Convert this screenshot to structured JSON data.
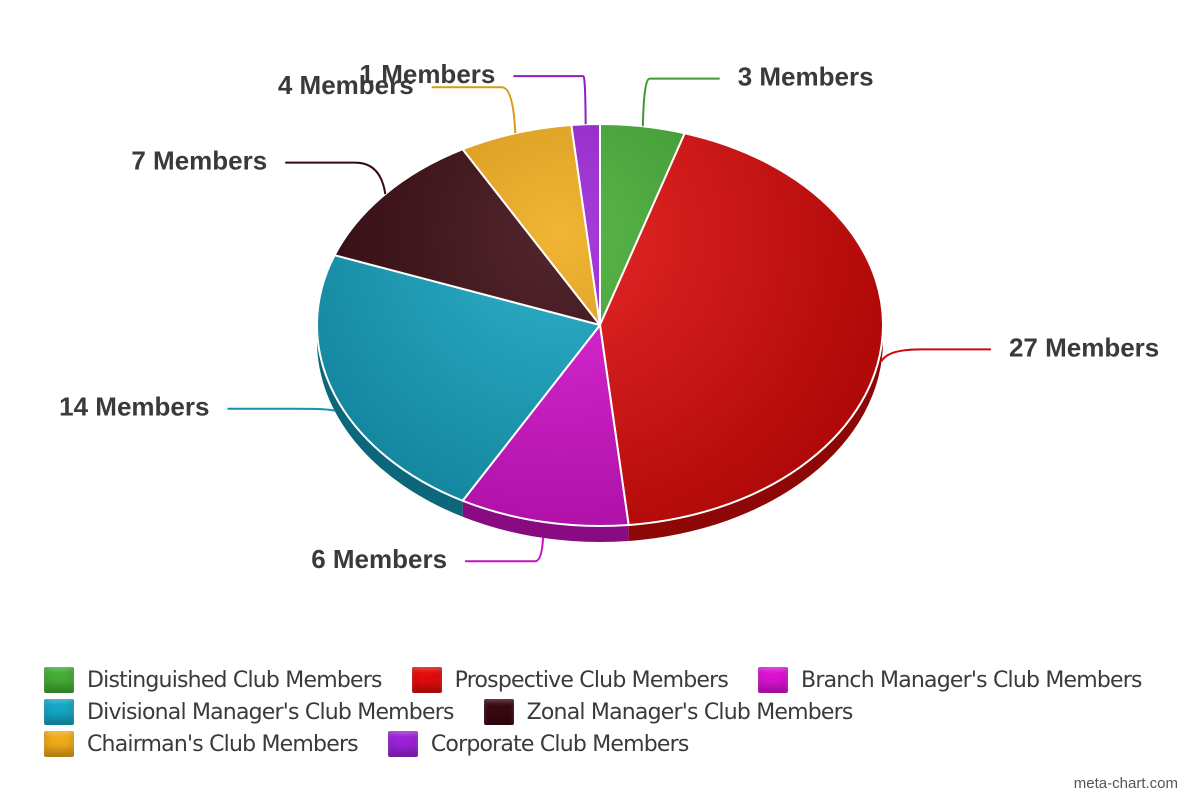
{
  "chart_data": {
    "type": "pie",
    "style": "3d",
    "slices": [
      {
        "legend": "Distinguished Club Members",
        "value": 3,
        "label": "3 Members",
        "color": "#43ad33"
      },
      {
        "legend": "Prospective Club Members",
        "value": 27,
        "label": "27 Members",
        "color": "#e30b0b"
      },
      {
        "legend": "Branch Manager's Club Members",
        "value": 6,
        "label": "6 Members",
        "color": "#db12d2"
      },
      {
        "legend": "Divisional Manager's Club Members",
        "value": 14,
        "label": "14 Members",
        "color": "#14a6c4"
      },
      {
        "legend": "Zonal Manager's Club Members",
        "value": 7,
        "label": "7 Members",
        "color": "#3a0810"
      },
      {
        "legend": "Chairman's Club Members",
        "value": 4,
        "label": "4 Members",
        "color": "#f0ab18"
      },
      {
        "legend": "Corporate Club Members",
        "value": 1,
        "label": "1 Members",
        "color": "#9c22d8"
      }
    ],
    "legend_position": "bottom"
  },
  "watermark": "meta-chart.com"
}
